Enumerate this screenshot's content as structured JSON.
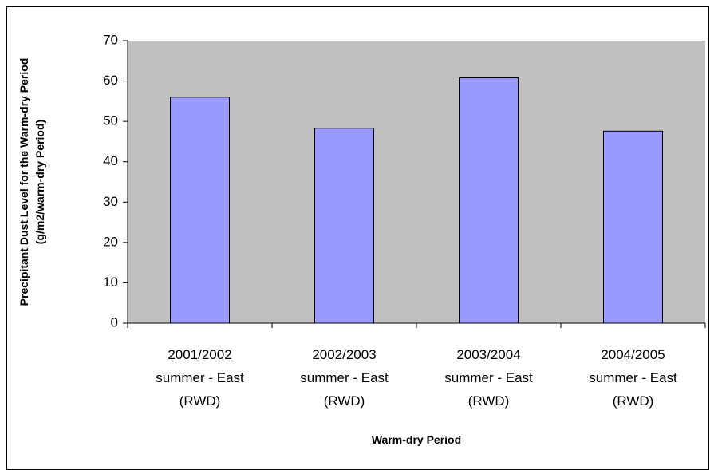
{
  "chart_data": {
    "type": "bar",
    "x_label": "Warm-dry Period",
    "y_label": "Precipitant Dust Level for the Warm-dry Period (g/m2/warm-dry Period)",
    "categories": [
      "2001/2002 summer - East (RWD)",
      "2002/2003 summer - East (RWD)",
      "2003/2004 summer - East (RWD)",
      "2004/2005 summer - East (RWD)"
    ],
    "values": [
      56,
      48.3,
      60.8,
      47.6
    ],
    "color": "#9999ff",
    "plot_background": "#c0c0c0",
    "ylim": [
      0,
      70
    ],
    "yticks": [
      0,
      10,
      20,
      30,
      40,
      50,
      60,
      70
    ],
    "grid": false
  }
}
